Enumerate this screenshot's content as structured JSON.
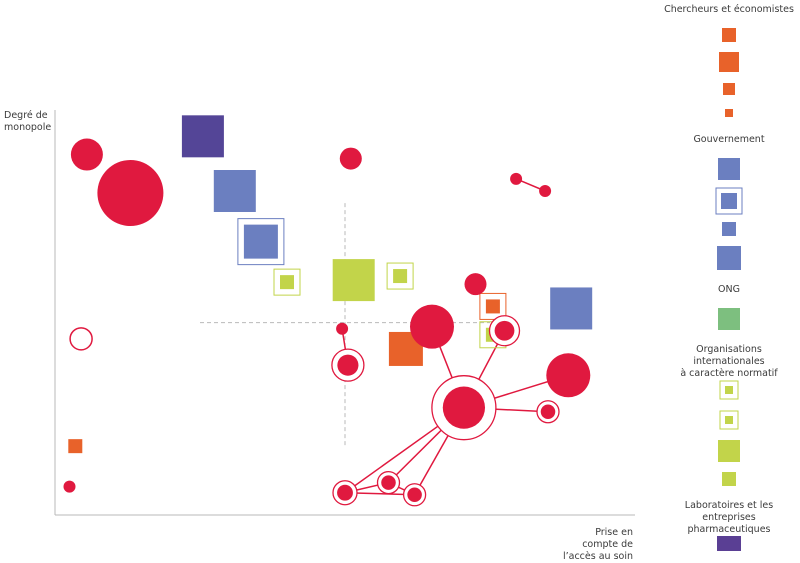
{
  "chart_data": {
    "type": "scatter",
    "xlabel": "Prise en compte de l’accès au soin",
    "ylabel": "Degré de monopole",
    "xlim": [
      0,
      100
    ],
    "ylim": [
      0,
      100
    ],
    "colors": {
      "chercheurs": "#e8622a",
      "gouvernement": "#6b7fc0",
      "gouvernement_dark": "#544597",
      "ong": "#7dbf7f",
      "oi": "#c2d44a",
      "labos": "#5a3f94",
      "red": "#e0193f",
      "axis": "#b9b9b9"
    },
    "series": [
      {
        "name": "Chercheurs et économistes",
        "color": "#e8622a",
        "points": [
          {
            "x": 3.5,
            "y": 17.0,
            "size": 14
          },
          {
            "x": 60.5,
            "y": 41.0,
            "size": 34
          },
          {
            "x": 75.5,
            "y": 51.5,
            "size": 14,
            "outline": true
          }
        ]
      },
      {
        "name": "Gouvernement",
        "color": "#6b7fc0",
        "points": [
          {
            "x": 25.5,
            "y": 93.5,
            "size": 42,
            "dark": true
          },
          {
            "x": 31.0,
            "y": 80.0,
            "size": 42
          },
          {
            "x": 35.5,
            "y": 67.5,
            "size": 34,
            "outline": true
          },
          {
            "x": 89.0,
            "y": 51.0,
            "size": 42
          }
        ]
      },
      {
        "name": "Organisations internationales à caractère normatif",
        "color": "#c2d44a",
        "points": [
          {
            "x": 40.0,
            "y": 57.5,
            "size": 14,
            "outline": true
          },
          {
            "x": 51.5,
            "y": 58.0,
            "size": 42
          },
          {
            "x": 59.5,
            "y": 59.0,
            "size": 14,
            "outline": true
          },
          {
            "x": 75.5,
            "y": 44.5,
            "size": 14,
            "outline": true
          }
        ]
      },
      {
        "name": "Laboratoires et les entreprises pharmaceutiques",
        "color": "#e0193f",
        "points": [
          {
            "x": 5.5,
            "y": 89.0,
            "r": 16
          },
          {
            "x": 13.0,
            "y": 79.5,
            "r": 33
          },
          {
            "x": 51.0,
            "y": 88.0,
            "r": 11
          },
          {
            "x": 79.5,
            "y": 83.0,
            "r": 6
          },
          {
            "x": 84.5,
            "y": 80.0,
            "r": 6
          },
          {
            "x": 4.5,
            "y": 43.5,
            "r": 11,
            "hollow": true
          },
          {
            "x": 49.5,
            "y": 46.0,
            "r": 6
          },
          {
            "x": 72.5,
            "y": 57.0,
            "r": 11
          },
          {
            "x": 65.0,
            "y": 46.5,
            "r": 22
          },
          {
            "x": 77.5,
            "y": 45.5,
            "r": 15,
            "ring": true
          },
          {
            "x": 50.5,
            "y": 37.0,
            "r": 16,
            "ring": true
          },
          {
            "x": 88.5,
            "y": 34.5,
            "r": 22
          },
          {
            "x": 70.5,
            "y": 26.5,
            "r": 32,
            "ring": true
          },
          {
            "x": 85.0,
            "y": 25.5,
            "r": 11,
            "ring": true
          },
          {
            "x": 2.5,
            "y": 7.0,
            "r": 6
          },
          {
            "x": 50.0,
            "y": 5.5,
            "r": 12,
            "ring": true
          },
          {
            "x": 57.5,
            "y": 8.0,
            "r": 11,
            "ring": true
          },
          {
            "x": 62.0,
            "y": 5.0,
            "r": 11,
            "ring": true
          }
        ]
      }
    ],
    "links": [
      [
        3,
        4
      ],
      [
        6,
        10
      ],
      [
        8,
        12
      ],
      [
        9,
        12
      ],
      [
        11,
        12
      ],
      [
        12,
        13
      ],
      [
        12,
        15
      ],
      [
        12,
        16
      ],
      [
        12,
        17
      ],
      [
        15,
        16
      ],
      [
        15,
        17
      ],
      [
        16,
        17
      ]
    ]
  },
  "legend": {
    "groups": [
      {
        "title": "Chercheurs et économistes",
        "color": "#e8622a",
        "items": [
          {
            "size": 14
          },
          {
            "size": 20
          },
          {
            "size": 12
          },
          {
            "size": 8
          }
        ]
      },
      {
        "title": "Gouvernement",
        "color": "#6b7fc0",
        "items": [
          {
            "size": 22
          },
          {
            "size": 16,
            "outline": true
          },
          {
            "size": 14
          },
          {
            "size": 24
          }
        ]
      },
      {
        "title": "ONG",
        "color": "#7dbf7f",
        "items": [
          {
            "size": 22
          }
        ]
      },
      {
        "title": "Organisations internationales\nà caractère normatif",
        "color": "#c2d44a",
        "items": [
          {
            "size": 8,
            "outline": true
          },
          {
            "size": 8,
            "outline": true
          },
          {
            "size": 22
          },
          {
            "size": 14
          }
        ]
      },
      {
        "title": "Laboratoires et les entreprises\npharmaceutiques",
        "color": "#5a3f94",
        "items": [
          {
            "size": 24
          }
        ]
      }
    ]
  }
}
